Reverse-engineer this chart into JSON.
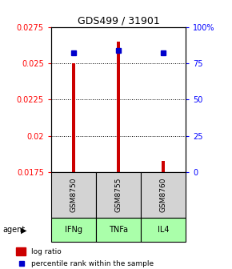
{
  "title": "GDS499 / 31901",
  "samples": [
    "GSM8750",
    "GSM8755",
    "GSM8760"
  ],
  "agents": [
    "IFNg",
    "TNFa",
    "IL4"
  ],
  "log_ratio": [
    0.025,
    0.0265,
    0.01825
  ],
  "percentile_rank": [
    82,
    84,
    82
  ],
  "ylim_left": [
    0.0175,
    0.0275
  ],
  "ylim_right": [
    0,
    100
  ],
  "yticks_left": [
    0.0175,
    0.02,
    0.0225,
    0.025,
    0.0275
  ],
  "ytick_labels_left": [
    "0.0175",
    "0.02",
    "0.0225",
    "0.025",
    "0.0275"
  ],
  "yticks_right": [
    0,
    25,
    50,
    75,
    100
  ],
  "ytick_labels_right": [
    "0",
    "25",
    "50",
    "75",
    "100%"
  ],
  "bar_color": "#cc0000",
  "dot_color": "#0000cc",
  "agent_color": "#aaffaa",
  "sample_box_color": "#d3d3d3",
  "legend_bar_label": "log ratio",
  "legend_dot_label": "percentile rank within the sample",
  "baseline": 0.0175,
  "bar_width": 0.08
}
